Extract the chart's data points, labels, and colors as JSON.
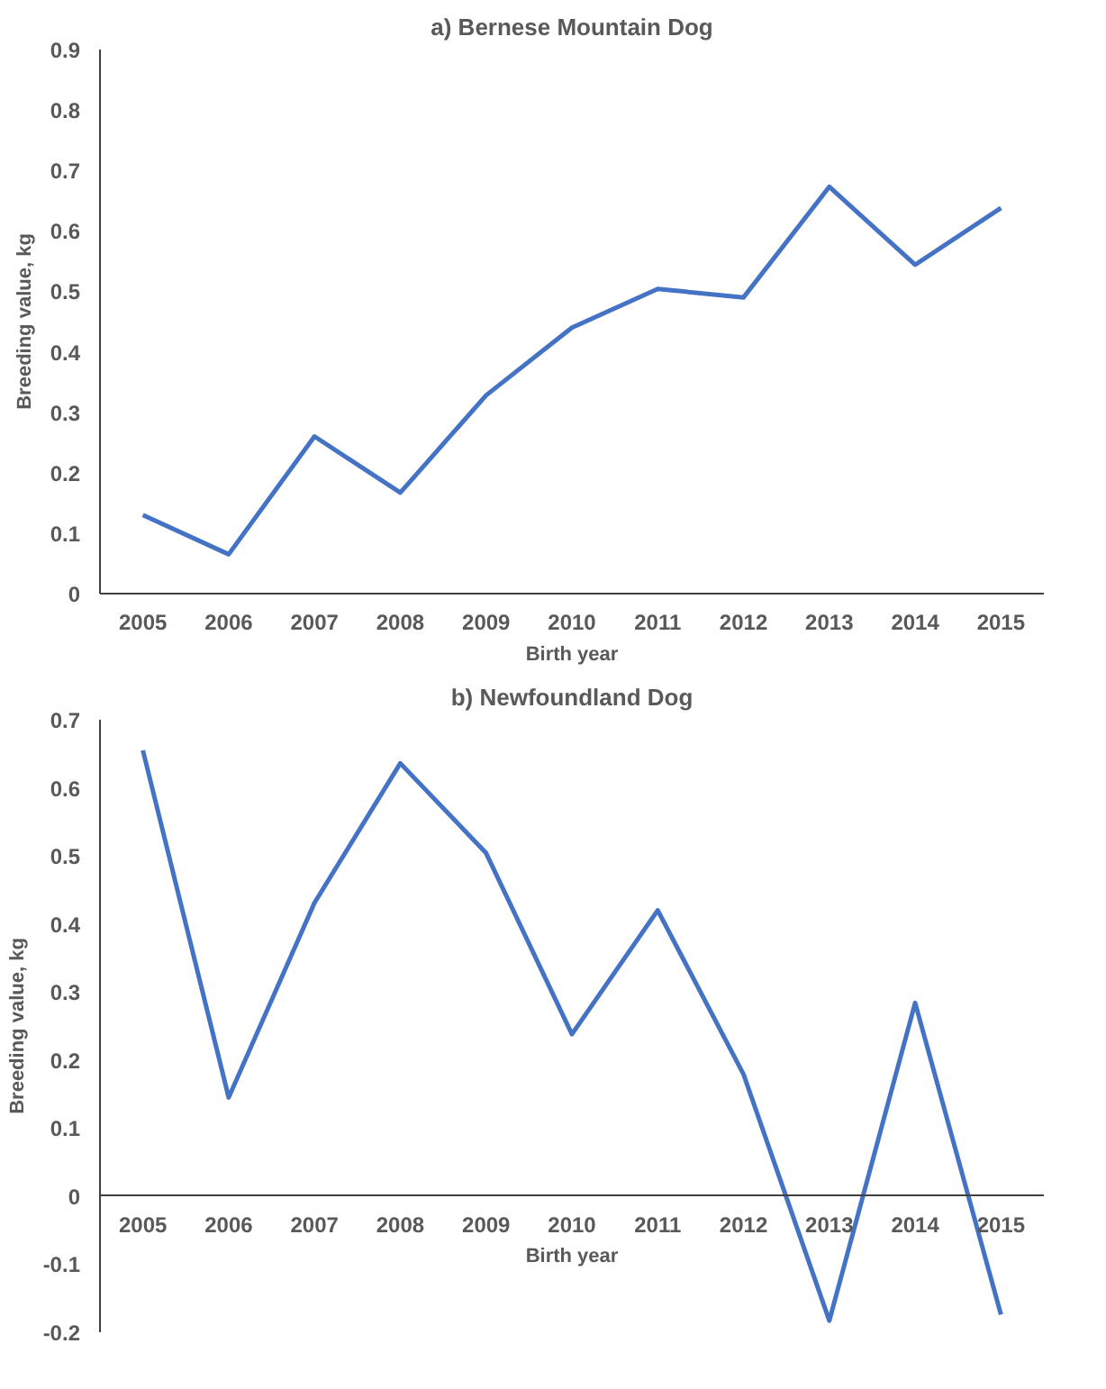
{
  "chart_data": [
    {
      "type": "line",
      "title": "a) Bernese Mountain Dog",
      "xlabel": "Birth year",
      "ylabel": "Breeding value, kg",
      "categories": [
        "2005",
        "2006",
        "2007",
        "2008",
        "2009",
        "2010",
        "2011",
        "2012",
        "2013",
        "2014",
        "2015"
      ],
      "series": [
        {
          "color": "#4472c4",
          "values": [
            0.13,
            0.065,
            0.26,
            0.167,
            0.328,
            0.44,
            0.504,
            0.49,
            0.673,
            0.544,
            0.638
          ]
        }
      ],
      "ylim": [
        0,
        0.9
      ],
      "yticks": [
        {
          "value": 0,
          "label": "0"
        },
        0.1,
        0.2,
        0.3,
        0.4,
        0.5,
        0.6,
        0.7,
        0.8,
        0.9
      ],
      "grid": false
    },
    {
      "type": "line",
      "title": "b) Newfoundland Dog",
      "xlabel": "Birth year",
      "ylabel": "Breeding value, kg",
      "categories": [
        "2005",
        "2006",
        "2007",
        "2008",
        "2009",
        "2010",
        "2011",
        "2012",
        "2013",
        "2014",
        "2015"
      ],
      "series": [
        {
          "color": "#4472c4",
          "values": [
            0.655,
            0.145,
            0.431,
            0.636,
            0.504,
            0.238,
            0.42,
            0.179,
            -0.183,
            0.284,
            -0.174
          ]
        }
      ],
      "ylim": [
        -0.2,
        0.7
      ],
      "yticks": [
        -0.2,
        -0.1,
        {
          "value": 0,
          "label": "0"
        },
        0.1,
        0.2,
        0.3,
        0.4,
        0.5,
        0.6,
        0.7
      ],
      "grid": false
    }
  ]
}
